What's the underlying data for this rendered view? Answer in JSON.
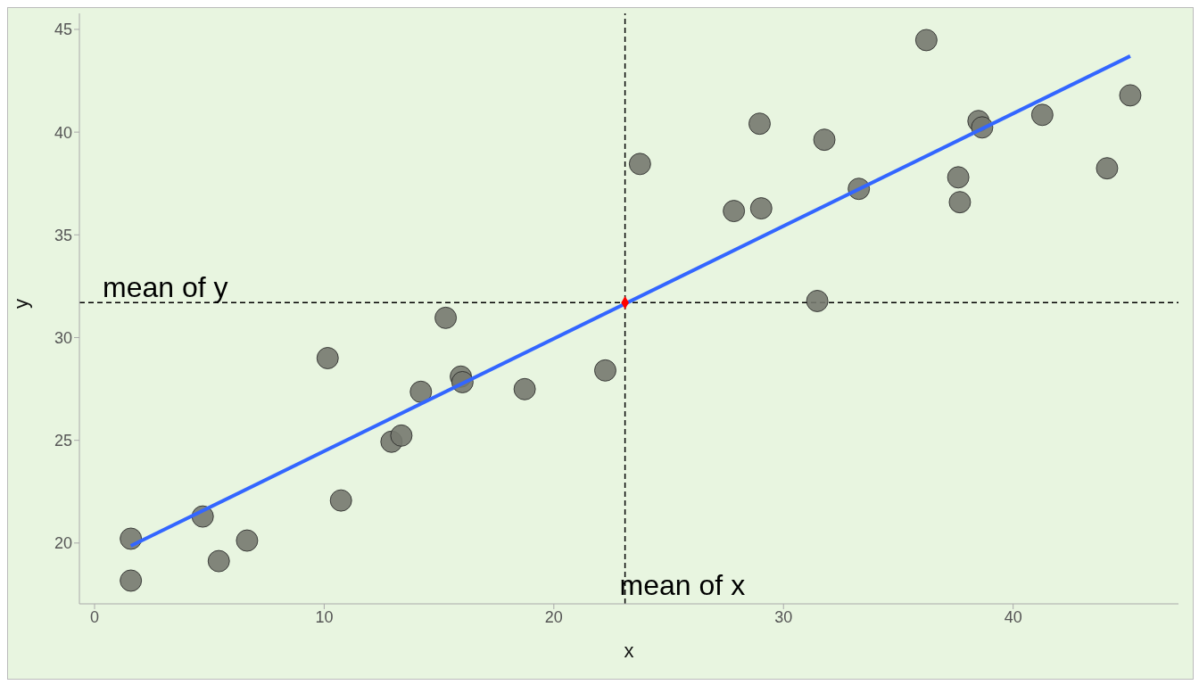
{
  "chart_data": {
    "type": "scatter",
    "xlabel": "x",
    "ylabel": "y",
    "xlim": [
      -0.66,
      47.2
    ],
    "ylim": [
      17.04,
      45.78
    ],
    "xticks": [
      0,
      10,
      20,
      30,
      40
    ],
    "yticks": [
      20,
      25,
      30,
      35,
      40,
      45
    ],
    "series": [
      {
        "color": "#75796f",
        "x": [
          1.58,
          1.58,
          4.71,
          5.41,
          6.64,
          10.15,
          10.73,
          12.93,
          13.36,
          14.21,
          15.29,
          15.95,
          16.02,
          18.73,
          22.24,
          23.75,
          27.84,
          28.96,
          29.03,
          31.47,
          31.78,
          33.28,
          36.22,
          37.61,
          37.68,
          38.49,
          38.65,
          41.27,
          44.09,
          45.1
        ],
        "values": [
          18.17,
          20.21,
          21.29,
          19.12,
          20.12,
          29.0,
          22.07,
          24.93,
          25.23,
          27.36,
          30.96,
          28.1,
          27.83,
          27.49,
          28.4,
          38.45,
          36.16,
          40.41,
          36.29,
          31.78,
          39.63,
          37.24,
          44.48,
          37.8,
          36.59,
          40.54,
          40.23,
          40.84,
          38.24,
          41.79
        ]
      },
      {
        "type": "line",
        "color": "#3366ff",
        "x": [
          1.58,
          45.1
        ],
        "values": [
          19.86,
          43.7
        ]
      },
      {
        "color": "#ff0000",
        "marker": "diamond",
        "x": [
          23.1
        ],
        "values": [
          31.7
        ]
      }
    ],
    "ref_lines": [
      {
        "axis": "x",
        "value": 23.1,
        "label": "mean of x",
        "line_style": "dashed"
      },
      {
        "axis": "y",
        "value": 31.7,
        "label": "mean of y",
        "line_style": "dashed"
      }
    ]
  }
}
